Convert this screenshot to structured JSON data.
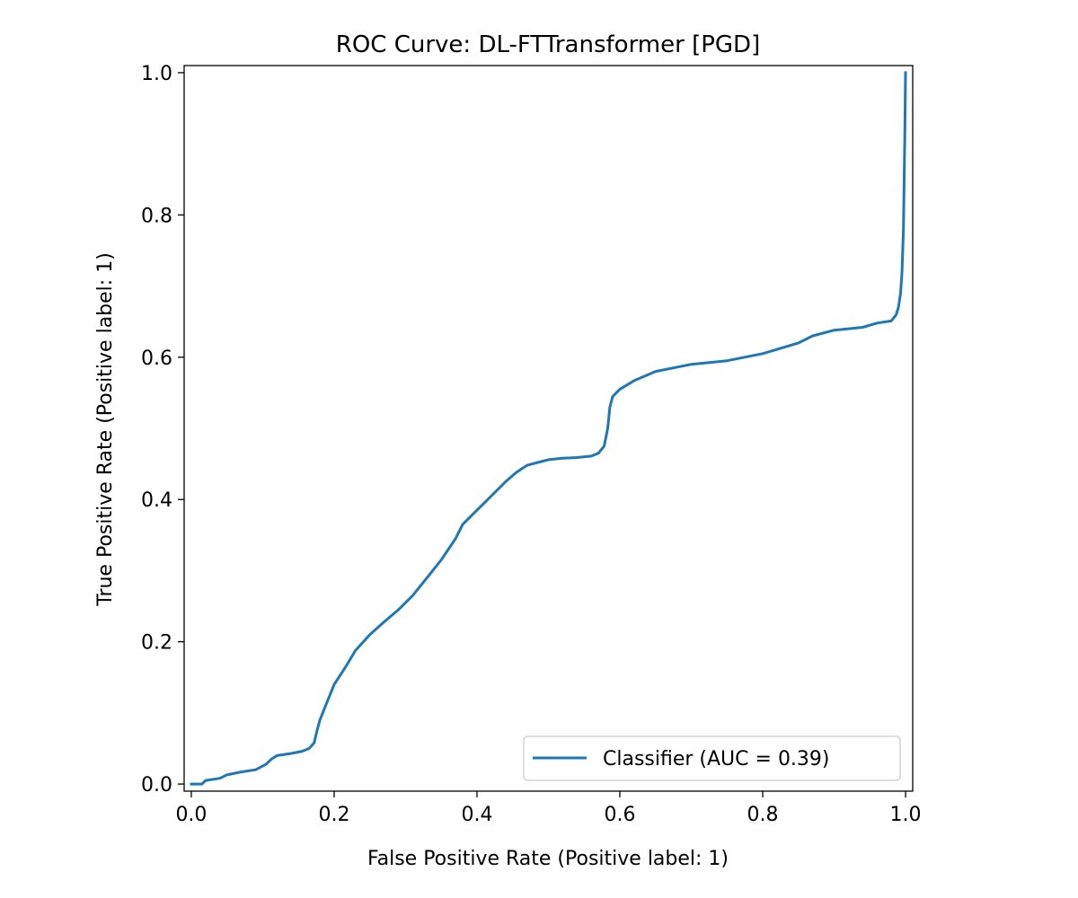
{
  "chart_data": {
    "type": "line",
    "title": "ROC Curve: DL-FTTransformer [PGD]",
    "xlabel": "False Positive Rate (Positive label: 1)",
    "ylabel": "True Positive Rate (Positive label: 1)",
    "xlim": [
      -0.01,
      1.01
    ],
    "ylim": [
      -0.01,
      1.01
    ],
    "x_ticks": [
      0.0,
      0.2,
      0.4,
      0.6,
      0.8,
      1.0
    ],
    "y_ticks": [
      0.0,
      0.2,
      0.4,
      0.6,
      0.8,
      1.0
    ],
    "x_tick_labels": [
      "0.0",
      "0.2",
      "0.4",
      "0.6",
      "0.8",
      "1.0"
    ],
    "y_tick_labels": [
      "0.0",
      "0.2",
      "0.4",
      "0.6",
      "0.8",
      "1.0"
    ],
    "grid": false,
    "legend_position": "lower-right",
    "colors": {
      "series": "#1f77b4"
    },
    "series": [
      {
        "name": "Classifier (AUC = 0.39)",
        "x": [
          0.0,
          0.015,
          0.02,
          0.04,
          0.05,
          0.07,
          0.09,
          0.105,
          0.112,
          0.12,
          0.14,
          0.155,
          0.165,
          0.172,
          0.176,
          0.18,
          0.19,
          0.2,
          0.215,
          0.23,
          0.25,
          0.27,
          0.29,
          0.31,
          0.33,
          0.35,
          0.37,
          0.38,
          0.4,
          0.42,
          0.44,
          0.455,
          0.47,
          0.485,
          0.5,
          0.52,
          0.54,
          0.56,
          0.57,
          0.578,
          0.583,
          0.586,
          0.59,
          0.6,
          0.62,
          0.65,
          0.7,
          0.75,
          0.8,
          0.85,
          0.87,
          0.9,
          0.94,
          0.96,
          0.98,
          0.987,
          0.99,
          0.993,
          0.995,
          0.997,
          0.998,
          0.999,
          1.0
        ],
        "y": [
          0.0,
          0.0,
          0.005,
          0.008,
          0.013,
          0.017,
          0.02,
          0.028,
          0.035,
          0.04,
          0.043,
          0.046,
          0.05,
          0.058,
          0.075,
          0.09,
          0.115,
          0.14,
          0.163,
          0.188,
          0.21,
          0.228,
          0.245,
          0.265,
          0.29,
          0.315,
          0.345,
          0.365,
          0.385,
          0.405,
          0.425,
          0.438,
          0.448,
          0.452,
          0.456,
          0.458,
          0.459,
          0.461,
          0.465,
          0.475,
          0.5,
          0.53,
          0.545,
          0.555,
          0.567,
          0.58,
          0.59,
          0.595,
          0.605,
          0.62,
          0.63,
          0.638,
          0.642,
          0.648,
          0.651,
          0.66,
          0.67,
          0.69,
          0.72,
          0.78,
          0.85,
          0.92,
          1.0
        ]
      }
    ]
  }
}
